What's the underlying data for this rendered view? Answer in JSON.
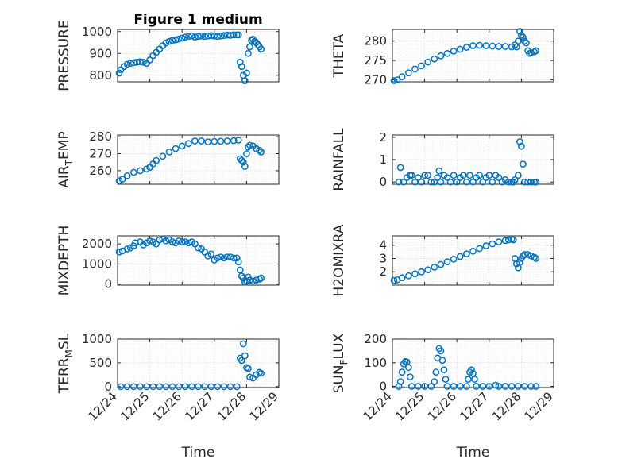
{
  "figure": {
    "title": "Figure 1 medium",
    "marker_color": "#0072BD",
    "grid": true,
    "minor_grid": true
  },
  "chart_data": [
    {
      "type": "scatter",
      "ylabel": "PRESSURE",
      "xlabel": "",
      "x_tick_labels": [],
      "ylim": [
        770,
        1010
      ],
      "yticks": [
        800,
        900,
        1000
      ],
      "xlim": [
        "12/24",
        "12/29"
      ],
      "show_title": true,
      "points": [
        [
          0.05,
          810
        ],
        [
          0.1,
          825
        ],
        [
          0.2,
          840
        ],
        [
          0.3,
          850
        ],
        [
          0.4,
          855
        ],
        [
          0.5,
          858
        ],
        [
          0.6,
          860
        ],
        [
          0.7,
          862
        ],
        [
          0.8,
          860
        ],
        [
          0.9,
          855
        ],
        [
          1.0,
          870
        ],
        [
          1.1,
          890
        ],
        [
          1.2,
          905
        ],
        [
          1.3,
          920
        ],
        [
          1.4,
          935
        ],
        [
          1.5,
          948
        ],
        [
          1.6,
          955
        ],
        [
          1.7,
          960
        ],
        [
          1.8,
          962
        ],
        [
          1.9,
          966
        ],
        [
          2.0,
          970
        ],
        [
          2.1,
          975
        ],
        [
          2.2,
          978
        ],
        [
          2.3,
          980
        ],
        [
          2.4,
          975
        ],
        [
          2.5,
          978
        ],
        [
          2.6,
          980
        ],
        [
          2.7,
          978
        ],
        [
          2.8,
          980
        ],
        [
          2.9,
          982
        ],
        [
          3.0,
          980
        ],
        [
          3.1,
          978
        ],
        [
          3.2,
          980
        ],
        [
          3.3,
          982
        ],
        [
          3.4,
          984
        ],
        [
          3.5,
          983
        ],
        [
          3.6,
          985
        ],
        [
          3.7,
          985
        ],
        [
          3.75,
          985
        ],
        [
          3.8,
          860
        ],
        [
          3.85,
          840
        ],
        [
          3.9,
          800
        ],
        [
          3.95,
          775
        ],
        [
          4.0,
          810
        ],
        [
          4.05,
          900
        ],
        [
          4.1,
          930
        ],
        [
          4.15,
          960
        ],
        [
          4.2,
          965
        ],
        [
          4.25,
          955
        ],
        [
          4.3,
          950
        ],
        [
          4.35,
          940
        ],
        [
          4.4,
          930
        ],
        [
          4.45,
          920
        ]
      ]
    },
    {
      "type": "scatter",
      "ylabel": "THETA",
      "xlabel": "",
      "x_tick_labels": [],
      "ylim": [
        269.5,
        283
      ],
      "yticks": [
        270,
        275,
        280
      ],
      "xlim": [
        "12/24",
        "12/29"
      ],
      "points": [
        [
          0.05,
          269.8
        ],
        [
          0.15,
          270
        ],
        [
          0.3,
          270.8
        ],
        [
          0.5,
          271.8
        ],
        [
          0.7,
          272.8
        ],
        [
          0.9,
          273.6
        ],
        [
          1.1,
          274.6
        ],
        [
          1.3,
          275.4
        ],
        [
          1.5,
          276.2
        ],
        [
          1.7,
          276.8
        ],
        [
          1.9,
          277.4
        ],
        [
          2.1,
          277.9
        ],
        [
          2.3,
          278.4
        ],
        [
          2.5,
          278.8
        ],
        [
          2.7,
          278.9
        ],
        [
          2.9,
          278.8
        ],
        [
          3.1,
          278.7
        ],
        [
          3.3,
          278.6
        ],
        [
          3.5,
          278.6
        ],
        [
          3.7,
          278.5
        ],
        [
          3.8,
          279.0
        ],
        [
          3.85,
          278.5
        ],
        [
          3.9,
          280.0
        ],
        [
          3.95,
          282.5
        ],
        [
          4.0,
          281.5
        ],
        [
          4.05,
          281.0
        ],
        [
          4.1,
          280.0
        ],
        [
          4.15,
          279.5
        ],
        [
          4.2,
          277.5
        ],
        [
          4.25,
          276.8
        ],
        [
          4.3,
          277.0
        ],
        [
          4.4,
          277.2
        ],
        [
          4.45,
          277.5
        ]
      ]
    },
    {
      "type": "scatter",
      "ylabel": "AIR_TEMP",
      "ylabel_main": "AIR",
      "ylabel_sub": "T",
      "ylabel_rest": "EMP",
      "xlabel": "",
      "x_tick_labels": [],
      "ylim": [
        252,
        281
      ],
      "yticks": [
        260,
        270,
        280
      ],
      "xlim": [
        "12/24",
        "12/29"
      ],
      "points": [
        [
          0.05,
          254
        ],
        [
          0.15,
          255
        ],
        [
          0.3,
          257
        ],
        [
          0.5,
          259
        ],
        [
          0.7,
          260
        ],
        [
          0.9,
          261
        ],
        [
          1.0,
          262
        ],
        [
          1.1,
          264
        ],
        [
          1.2,
          266
        ],
        [
          1.4,
          268.5
        ],
        [
          1.6,
          271
        ],
        [
          1.8,
          273
        ],
        [
          2.0,
          274.5
        ],
        [
          2.2,
          276
        ],
        [
          2.4,
          277.5
        ],
        [
          2.6,
          277.5
        ],
        [
          2.8,
          277
        ],
        [
          3.0,
          277.2
        ],
        [
          3.2,
          277.3
        ],
        [
          3.4,
          277.5
        ],
        [
          3.6,
          277.7
        ],
        [
          3.75,
          278
        ],
        [
          3.8,
          267
        ],
        [
          3.85,
          266
        ],
        [
          3.9,
          265
        ],
        [
          3.95,
          262.5
        ],
        [
          4.0,
          270
        ],
        [
          4.05,
          274
        ],
        [
          4.1,
          275
        ],
        [
          4.2,
          274.5
        ],
        [
          4.3,
          273
        ],
        [
          4.4,
          272
        ],
        [
          4.45,
          271
        ]
      ]
    },
    {
      "type": "scatter",
      "ylabel": "RAINFALL",
      "xlabel": "",
      "x_tick_labels": [],
      "ylim": [
        -0.1,
        2.1
      ],
      "yticks": [
        0,
        1,
        2
      ],
      "xlim": [
        "12/24",
        "12/29"
      ],
      "points": [
        [
          0.2,
          0.0
        ],
        [
          0.25,
          0.65
        ],
        [
          0.35,
          0.0
        ],
        [
          0.45,
          0.2
        ],
        [
          0.55,
          0.3
        ],
        [
          0.6,
          0.3
        ],
        [
          0.7,
          0.0
        ],
        [
          0.8,
          0.2
        ],
        [
          0.9,
          0.0
        ],
        [
          1.0,
          0.3
        ],
        [
          1.1,
          0.3
        ],
        [
          1.2,
          0.0
        ],
        [
          1.3,
          0.0
        ],
        [
          1.4,
          0.2
        ],
        [
          1.45,
          0.5
        ],
        [
          1.5,
          0.0
        ],
        [
          1.6,
          0.3
        ],
        [
          1.7,
          0.2
        ],
        [
          1.8,
          0.0
        ],
        [
          1.9,
          0.3
        ],
        [
          2.0,
          0.0
        ],
        [
          2.1,
          0.2
        ],
        [
          2.2,
          0.3
        ],
        [
          2.3,
          0.0
        ],
        [
          2.4,
          0.3
        ],
        [
          2.5,
          0.0
        ],
        [
          2.6,
          0.2
        ],
        [
          2.7,
          0.3
        ],
        [
          2.8,
          0.0
        ],
        [
          2.9,
          0.2
        ],
        [
          3.0,
          0.3
        ],
        [
          3.1,
          0.0
        ],
        [
          3.2,
          0.3
        ],
        [
          3.3,
          0.2
        ],
        [
          3.4,
          0.0
        ],
        [
          3.5,
          0.1
        ],
        [
          3.6,
          0.0
        ],
        [
          3.7,
          0.0
        ],
        [
          3.75,
          0.0
        ],
        [
          3.8,
          0.1
        ],
        [
          3.9,
          0.3
        ],
        [
          3.95,
          1.8
        ],
        [
          4.0,
          1.6
        ],
        [
          4.05,
          0.8
        ],
        [
          4.1,
          0.0
        ],
        [
          4.2,
          0.0
        ],
        [
          4.3,
          0.0
        ],
        [
          4.4,
          0.0
        ],
        [
          4.45,
          0.0
        ]
      ]
    },
    {
      "type": "scatter",
      "ylabel": "MIXDEPTH",
      "xlabel": "",
      "x_tick_labels": [],
      "ylim": [
        -50,
        2400
      ],
      "yticks": [
        0,
        1000,
        2000
      ],
      "xlim": [
        "12/24",
        "12/29"
      ],
      "points": [
        [
          0.05,
          1600
        ],
        [
          0.15,
          1650
        ],
        [
          0.3,
          1750
        ],
        [
          0.4,
          1800
        ],
        [
          0.5,
          1900
        ],
        [
          0.55,
          2050
        ],
        [
          0.7,
          2100
        ],
        [
          0.8,
          1950
        ],
        [
          0.9,
          2050
        ],
        [
          1.0,
          2150
        ],
        [
          1.1,
          2100
        ],
        [
          1.2,
          2000
        ],
        [
          1.3,
          2200
        ],
        [
          1.4,
          2250
        ],
        [
          1.5,
          2150
        ],
        [
          1.6,
          2200
        ],
        [
          1.7,
          2100
        ],
        [
          1.8,
          2050
        ],
        [
          1.9,
          2150
        ],
        [
          2.0,
          2100
        ],
        [
          2.1,
          2100
        ],
        [
          2.2,
          2050
        ],
        [
          2.3,
          2100
        ],
        [
          2.4,
          2000
        ],
        [
          2.5,
          1800
        ],
        [
          2.6,
          1750
        ],
        [
          2.7,
          1600
        ],
        [
          2.8,
          1400
        ],
        [
          2.9,
          1500
        ],
        [
          3.0,
          1200
        ],
        [
          3.1,
          1300
        ],
        [
          3.2,
          1350
        ],
        [
          3.3,
          1300
        ],
        [
          3.4,
          1350
        ],
        [
          3.5,
          1350
        ],
        [
          3.6,
          1300
        ],
        [
          3.7,
          1300
        ],
        [
          3.75,
          1100
        ],
        [
          3.8,
          700
        ],
        [
          3.85,
          400
        ],
        [
          3.9,
          300
        ],
        [
          3.95,
          100
        ],
        [
          4.0,
          150
        ],
        [
          4.05,
          350
        ],
        [
          4.1,
          200
        ],
        [
          4.2,
          150
        ],
        [
          4.3,
          200
        ],
        [
          4.4,
          250
        ],
        [
          4.45,
          300
        ]
      ]
    },
    {
      "type": "scatter",
      "ylabel": "H2OMIXRA",
      "xlabel": "",
      "x_tick_labels": [],
      "ylim": [
        1.0,
        4.7
      ],
      "yticks": [
        2,
        3,
        4
      ],
      "xlim": [
        "12/24",
        "12/29"
      ],
      "points": [
        [
          0.05,
          1.35
        ],
        [
          0.15,
          1.4
        ],
        [
          0.3,
          1.55
        ],
        [
          0.5,
          1.7
        ],
        [
          0.7,
          1.85
        ],
        [
          0.9,
          2.0
        ],
        [
          1.1,
          2.15
        ],
        [
          1.3,
          2.35
        ],
        [
          1.5,
          2.55
        ],
        [
          1.7,
          2.75
        ],
        [
          1.9,
          2.95
        ],
        [
          2.1,
          3.15
        ],
        [
          2.3,
          3.35
        ],
        [
          2.5,
          3.55
        ],
        [
          2.7,
          3.75
        ],
        [
          2.9,
          3.95
        ],
        [
          3.1,
          4.1
        ],
        [
          3.3,
          4.25
        ],
        [
          3.5,
          4.35
        ],
        [
          3.6,
          4.4
        ],
        [
          3.7,
          4.45
        ],
        [
          3.75,
          4.4
        ],
        [
          3.8,
          3.0
        ],
        [
          3.85,
          2.6
        ],
        [
          3.9,
          2.3
        ],
        [
          3.95,
          2.7
        ],
        [
          4.0,
          3.0
        ],
        [
          4.05,
          3.2
        ],
        [
          4.1,
          3.3
        ],
        [
          4.2,
          3.3
        ],
        [
          4.3,
          3.2
        ],
        [
          4.4,
          3.1
        ],
        [
          4.45,
          3.0
        ]
      ]
    },
    {
      "type": "scatter",
      "ylabel": "TERR_MSL",
      "ylabel_main": "TERR",
      "ylabel_sub": "M",
      "ylabel_rest": "SL",
      "xlabel": "Time",
      "x_tick_labels": [
        "12/24",
        "12/25",
        "12/26",
        "12/27",
        "12/28",
        "12/29"
      ],
      "ylim": [
        -20,
        1000
      ],
      "yticks": [
        0,
        500,
        1000
      ],
      "xlim": [
        "12/24",
        "12/29"
      ],
      "points": [
        [
          0.1,
          0
        ],
        [
          0.3,
          0
        ],
        [
          0.5,
          0
        ],
        [
          0.7,
          0
        ],
        [
          0.9,
          0
        ],
        [
          1.1,
          0
        ],
        [
          1.3,
          0
        ],
        [
          1.5,
          0
        ],
        [
          1.7,
          0
        ],
        [
          1.9,
          0
        ],
        [
          2.1,
          0
        ],
        [
          2.3,
          0
        ],
        [
          2.5,
          0
        ],
        [
          2.7,
          0
        ],
        [
          2.9,
          0
        ],
        [
          3.1,
          0
        ],
        [
          3.3,
          0
        ],
        [
          3.5,
          0
        ],
        [
          3.7,
          0
        ],
        [
          3.8,
          600
        ],
        [
          3.85,
          550
        ],
        [
          3.9,
          900
        ],
        [
          3.95,
          650
        ],
        [
          4.0,
          400
        ],
        [
          4.05,
          380
        ],
        [
          4.1,
          200
        ],
        [
          4.2,
          180
        ],
        [
          4.3,
          250
        ],
        [
          4.4,
          300
        ],
        [
          4.45,
          280
        ]
      ]
    },
    {
      "type": "scatter",
      "ylabel": "SUN_FLUX",
      "ylabel_main": "SUN",
      "ylabel_sub": "F",
      "ylabel_rest": "LUX",
      "xlabel": "Time",
      "x_tick_labels": [
        "12/24",
        "12/25",
        "12/26",
        "12/27",
        "12/28",
        "12/29"
      ],
      "ylim": [
        -5,
        200
      ],
      "yticks": [
        0,
        100,
        200
      ],
      "xlim": [
        "12/24",
        "12/29"
      ],
      "points": [
        [
          0.2,
          0
        ],
        [
          0.25,
          20
        ],
        [
          0.3,
          60
        ],
        [
          0.35,
          95
        ],
        [
          0.4,
          105
        ],
        [
          0.45,
          103
        ],
        [
          0.5,
          80
        ],
        [
          0.55,
          40
        ],
        [
          0.6,
          0
        ],
        [
          0.8,
          0
        ],
        [
          1.0,
          0
        ],
        [
          1.2,
          0
        ],
        [
          1.3,
          20
        ],
        [
          1.35,
          60
        ],
        [
          1.4,
          120
        ],
        [
          1.45,
          160
        ],
        [
          1.5,
          150
        ],
        [
          1.55,
          110
        ],
        [
          1.6,
          70
        ],
        [
          1.65,
          30
        ],
        [
          1.7,
          0
        ],
        [
          1.9,
          0
        ],
        [
          2.1,
          0
        ],
        [
          2.3,
          0
        ],
        [
          2.35,
          30
        ],
        [
          2.4,
          60
        ],
        [
          2.45,
          70
        ],
        [
          2.5,
          55
        ],
        [
          2.55,
          30
        ],
        [
          2.6,
          0
        ],
        [
          2.8,
          0
        ],
        [
          3.0,
          0
        ],
        [
          3.2,
          5
        ],
        [
          3.3,
          0
        ],
        [
          3.5,
          0
        ],
        [
          3.7,
          0
        ],
        [
          3.9,
          0
        ],
        [
          4.1,
          0
        ],
        [
          4.3,
          0
        ],
        [
          4.45,
          0
        ]
      ]
    }
  ]
}
